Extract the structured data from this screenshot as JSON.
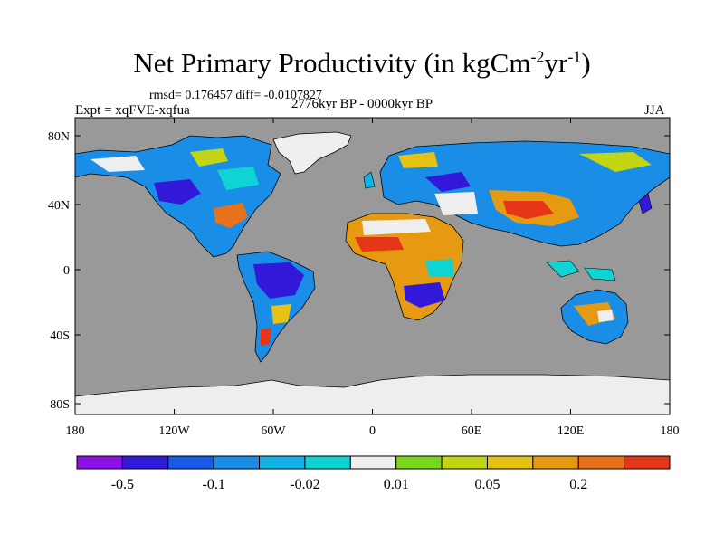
{
  "title": {
    "text": "Net Primary Productivity (in kgCm",
    "sup1": "-2",
    "mid": "yr",
    "sup2": "-1",
    "close": ")"
  },
  "stats": "rmsd= 0.176457 diff= -0.0107827",
  "experiment": "Expt = xqFVE-xqfua",
  "period": "2776kyr BP - 0000kyr BP",
  "season": "JJA",
  "axes": {
    "y_ticks": [
      "80N",
      "40N",
      "0",
      "40S",
      "80S"
    ],
    "x_ticks": [
      "180",
      "120W",
      "60W",
      "0",
      "60E",
      "120E",
      "180"
    ]
  },
  "colorbar": {
    "colors": [
      "#8a12e6",
      "#3218d8",
      "#1a5ae6",
      "#1a8ee6",
      "#12b2e6",
      "#10d4d4",
      "#eeeeee",
      "#7ad61a",
      "#c2d412",
      "#e6c212",
      "#e69a12",
      "#e6721a",
      "#e6361a"
    ],
    "labels": [
      "-0.5",
      "-0.1",
      "-0.02",
      "0.01",
      "0.05",
      "0.2"
    ]
  },
  "colors": {
    "ocean": "#999999",
    "ice": "#eeeeee",
    "frame": "#000000"
  }
}
